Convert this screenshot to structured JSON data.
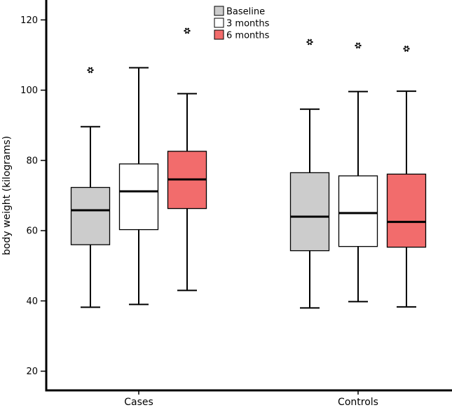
{
  "chart_data": {
    "type": "boxplot",
    "title": "",
    "xlabel": "",
    "ylabel": "body weight (kilograms)",
    "ylim": [
      15,
      125
    ],
    "yticks": [
      20,
      40,
      60,
      80,
      100,
      120
    ],
    "grid": false,
    "legend": "top-center",
    "categories": [
      "Cases",
      "Controls"
    ],
    "series": [
      {
        "name": "Baseline",
        "color": "#cccccc",
        "boxes": [
          {
            "whisker_low": 38.2,
            "q1": 56,
            "median": 65.8,
            "q3": 72.3,
            "whisker_high": 89.6,
            "outliers": [
              105.7
            ]
          },
          {
            "whisker_low": 38,
            "q1": 54.3,
            "median": 64,
            "q3": 76.5,
            "whisker_high": 94.6,
            "outliers": [
              113.7
            ]
          }
        ]
      },
      {
        "name": "3 months",
        "color": "#ffffff",
        "boxes": [
          {
            "whisker_low": 39,
            "q1": 60.3,
            "median": 71.2,
            "q3": 79,
            "whisker_high": 106.4,
            "outliers": []
          },
          {
            "whisker_low": 39.8,
            "q1": 55.5,
            "median": 65,
            "q3": 75.6,
            "whisker_high": 99.6,
            "outliers": [
              112.7
            ]
          }
        ]
      },
      {
        "name": "6 months",
        "color": "#f26c6c",
        "boxes": [
          {
            "whisker_low": 43,
            "q1": 66.3,
            "median": 74.6,
            "q3": 82.6,
            "whisker_high": 99,
            "outliers": [
              116.9
            ]
          },
          {
            "whisker_low": 38.3,
            "q1": 55.3,
            "median": 62.5,
            "q3": 76.1,
            "whisker_high": 99.7,
            "outliers": [
              111.8
            ]
          }
        ]
      }
    ]
  }
}
